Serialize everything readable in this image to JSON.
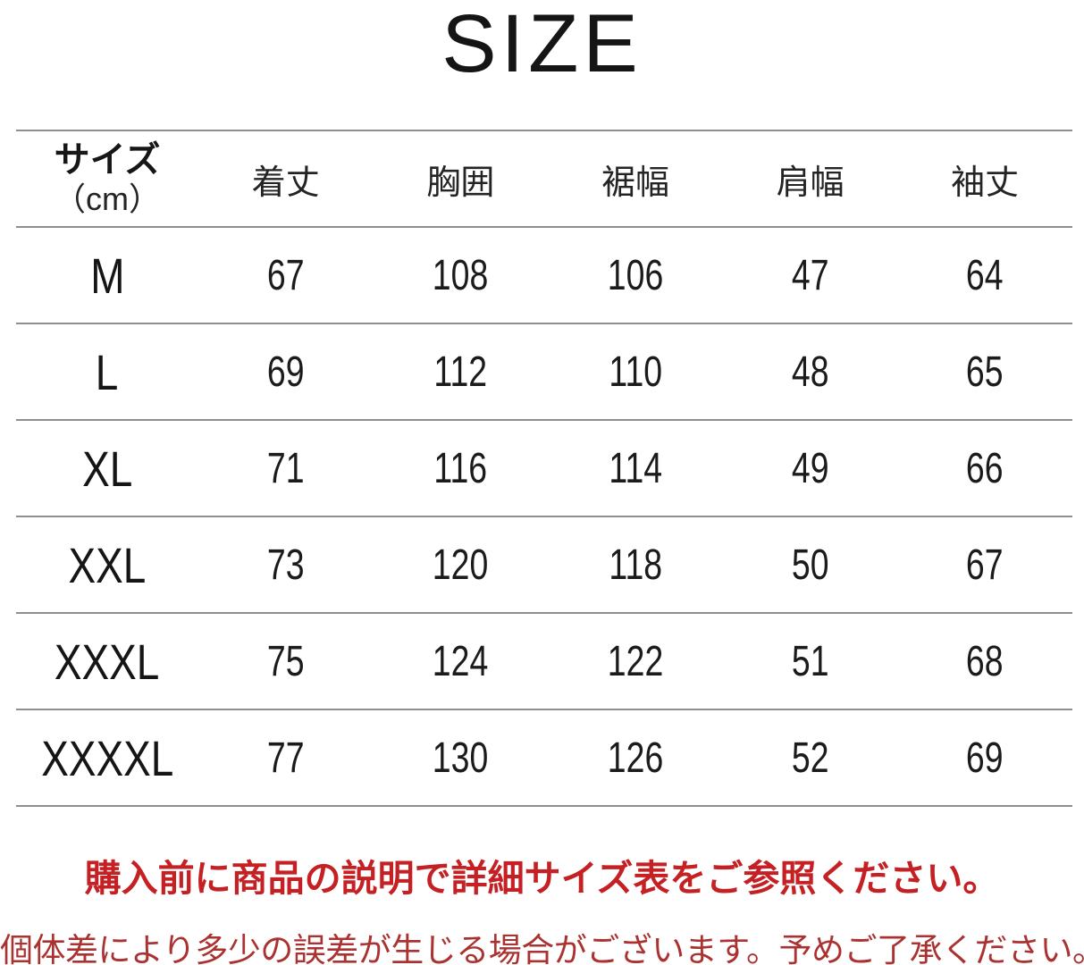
{
  "title": "SIZE",
  "table": {
    "header": {
      "size_label": "サイズ",
      "size_unit": "（cm）",
      "columns": [
        "着丈",
        "胸囲",
        "裾幅",
        "肩幅",
        "袖丈"
      ]
    },
    "rows": [
      {
        "size": "M",
        "values": [
          67,
          108,
          106,
          47,
          64
        ]
      },
      {
        "size": "L",
        "values": [
          69,
          112,
          110,
          48,
          65
        ]
      },
      {
        "size": "XL",
        "values": [
          71,
          116,
          114,
          49,
          66
        ]
      },
      {
        "size": "XXL",
        "values": [
          73,
          120,
          118,
          50,
          67
        ]
      },
      {
        "size": "XXXL",
        "values": [
          75,
          124,
          122,
          51,
          68
        ]
      },
      {
        "size": "XXXXL",
        "values": [
          77,
          130,
          126,
          52,
          69
        ]
      }
    ]
  },
  "notices": {
    "primary": "購入前に商品の説明で詳細サイズ表をご参照ください。",
    "secondary": "個体差により多少の誤差が生じる場合がございます。予めご了承ください。"
  },
  "colors": {
    "notice_primary": "#c52023",
    "notice_secondary": "#aa3331",
    "table_line": "#8f8f8f",
    "text": "#1b1b1b"
  },
  "chart_data": {
    "type": "table",
    "title": "SIZE",
    "columns": [
      "サイズ（cm）",
      "着丈",
      "胸囲",
      "裾幅",
      "肩幅",
      "袖丈"
    ],
    "rows": [
      [
        "M",
        67,
        108,
        106,
        47,
        64
      ],
      [
        "L",
        69,
        112,
        110,
        48,
        65
      ],
      [
        "XL",
        71,
        116,
        114,
        49,
        66
      ],
      [
        "XXL",
        73,
        120,
        118,
        50,
        67
      ],
      [
        "XXXL",
        75,
        124,
        122,
        51,
        68
      ],
      [
        "XXXXL",
        77,
        130,
        126,
        52,
        69
      ]
    ],
    "notes": [
      "購入前に商品の説明で詳細サイズ表をご参照ください。",
      "個体差により多少の誤差が生じる場合がございます。予めご了承ください。"
    ]
  }
}
